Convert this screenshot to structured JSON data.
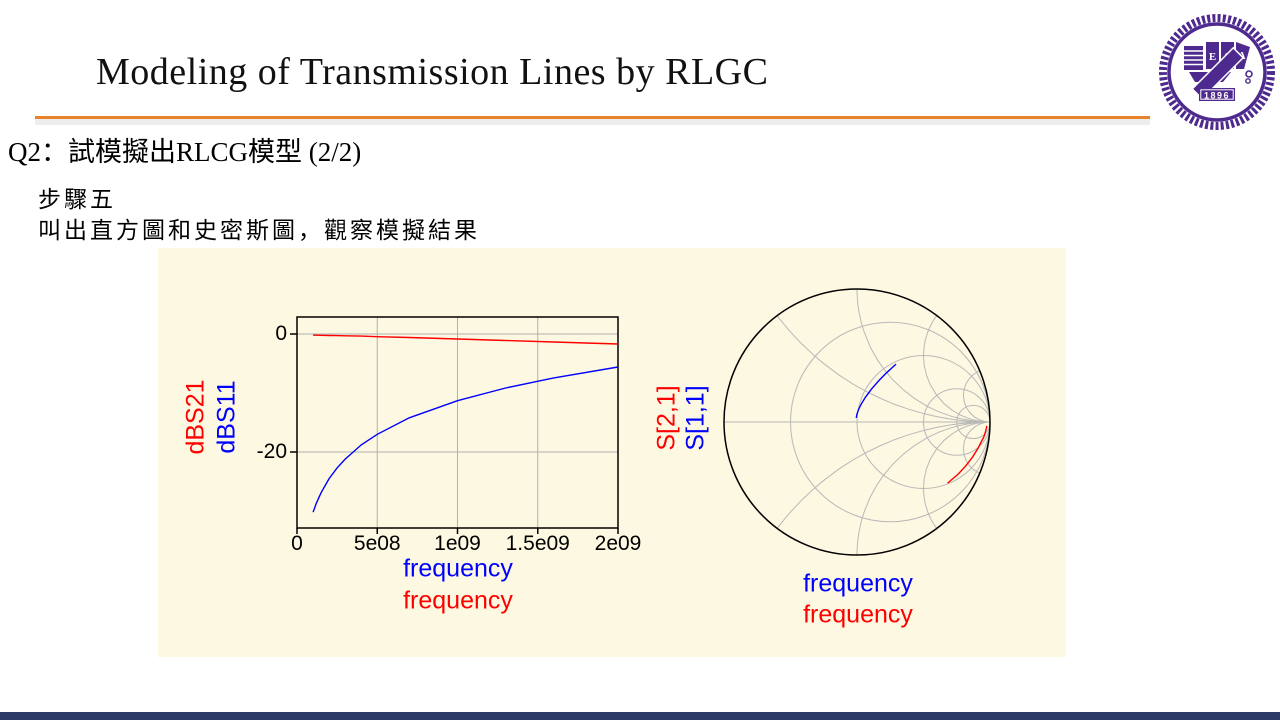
{
  "slide": {
    "title": "Modeling of Transmission Lines by RLGC",
    "question": "Q2：試模擬出RLCG模型 (2/2)",
    "step_title": "步驟五",
    "step_description": "叫出直方圖和史密斯圖，觀察模擬結果",
    "accent_rule_color": "#E8822B",
    "panel_bg_color": "#FDF8E1",
    "footer_bar_color": "#2B3A67"
  },
  "logo": {
    "year": "1896",
    "letter_e": "E",
    "letter_s": "S",
    "letter_a": "A",
    "color": "#4E2A8E"
  },
  "chart_data": [
    {
      "type": "line",
      "xlabel_blue": "frequency",
      "xlabel_red": "frequency",
      "ylabel_red": "dBS21",
      "ylabel_blue": "dBS11",
      "xlim_ghz": [
        0,
        2
      ],
      "ylim_db": [
        -32.9,
        2.9
      ],
      "grid": true,
      "x_tick_labels": [
        "0",
        "5e08",
        "1e09",
        "1.5e09",
        "2e09"
      ],
      "x_tick_values_ghz": [
        0,
        0.5,
        1,
        1.5,
        2
      ],
      "y_tick_labels": [
        "0",
        "-20"
      ],
      "y_tick_values_db": [
        0,
        -20
      ],
      "series": [
        {
          "name": "dBS21",
          "color": "#FF0000",
          "f_ghz": [
            0.1,
            0.12,
            0.15,
            0.2,
            0.25,
            0.3,
            0.4,
            0.5,
            0.7,
            1.0,
            1.3,
            1.6,
            2.0
          ],
          "db": [
            -0.2,
            -0.21,
            -0.22,
            -0.25,
            -0.27,
            -0.3,
            -0.35,
            -0.45,
            -0.6,
            -0.85,
            -1.1,
            -1.35,
            -1.7
          ]
        },
        {
          "name": "dBS11",
          "color": "#0000FF",
          "f_ghz": [
            0.1,
            0.12,
            0.15,
            0.2,
            0.25,
            0.3,
            0.4,
            0.5,
            0.7,
            1.0,
            1.3,
            1.6,
            2.0
          ],
          "db": [
            -30.2,
            -28.7,
            -26.9,
            -24.5,
            -22.7,
            -21.2,
            -18.8,
            -17.0,
            -14.2,
            -11.3,
            -9.15,
            -7.44,
            -5.6
          ]
        }
      ]
    },
    {
      "type": "smith",
      "label_red": "S[2,1]",
      "label_blue": "S[1,1]",
      "xlabel_blue": "frequency",
      "xlabel_red": "frequency",
      "grid_r_circles": [
        0.3333,
        1,
        3,
        7
      ],
      "grid_x_arcs": [
        0.5,
        1,
        2,
        5
      ],
      "traces": [
        {
          "name": "S[2,1]",
          "color": "#FF0000",
          "mag": [
            0.977,
            0.976,
            0.975,
            0.972,
            0.969,
            0.966,
            0.96,
            0.949,
            0.933,
            0.907,
            0.881,
            0.856,
            0.822
          ],
          "deg": [
            -1.7,
            -2.0,
            -2.6,
            -3.4,
            -4.3,
            -5.1,
            -6.8,
            -8.5,
            -11.9,
            -17.0,
            -22.1,
            -27.2,
            -34.0
          ]
        },
        {
          "name": "S[1,1]",
          "color": "#0000FF",
          "mag": [
            0.031,
            0.037,
            0.045,
            0.06,
            0.073,
            0.087,
            0.115,
            0.141,
            0.195,
            0.272,
            0.349,
            0.425,
            0.525
          ],
          "deg": [
            100,
            97.3,
            94.0,
            89.8,
            86.5,
            83.9,
            79.7,
            76.4,
            71.4,
            66.2,
            62.3,
            59.3,
            56.0
          ]
        }
      ]
    }
  ]
}
